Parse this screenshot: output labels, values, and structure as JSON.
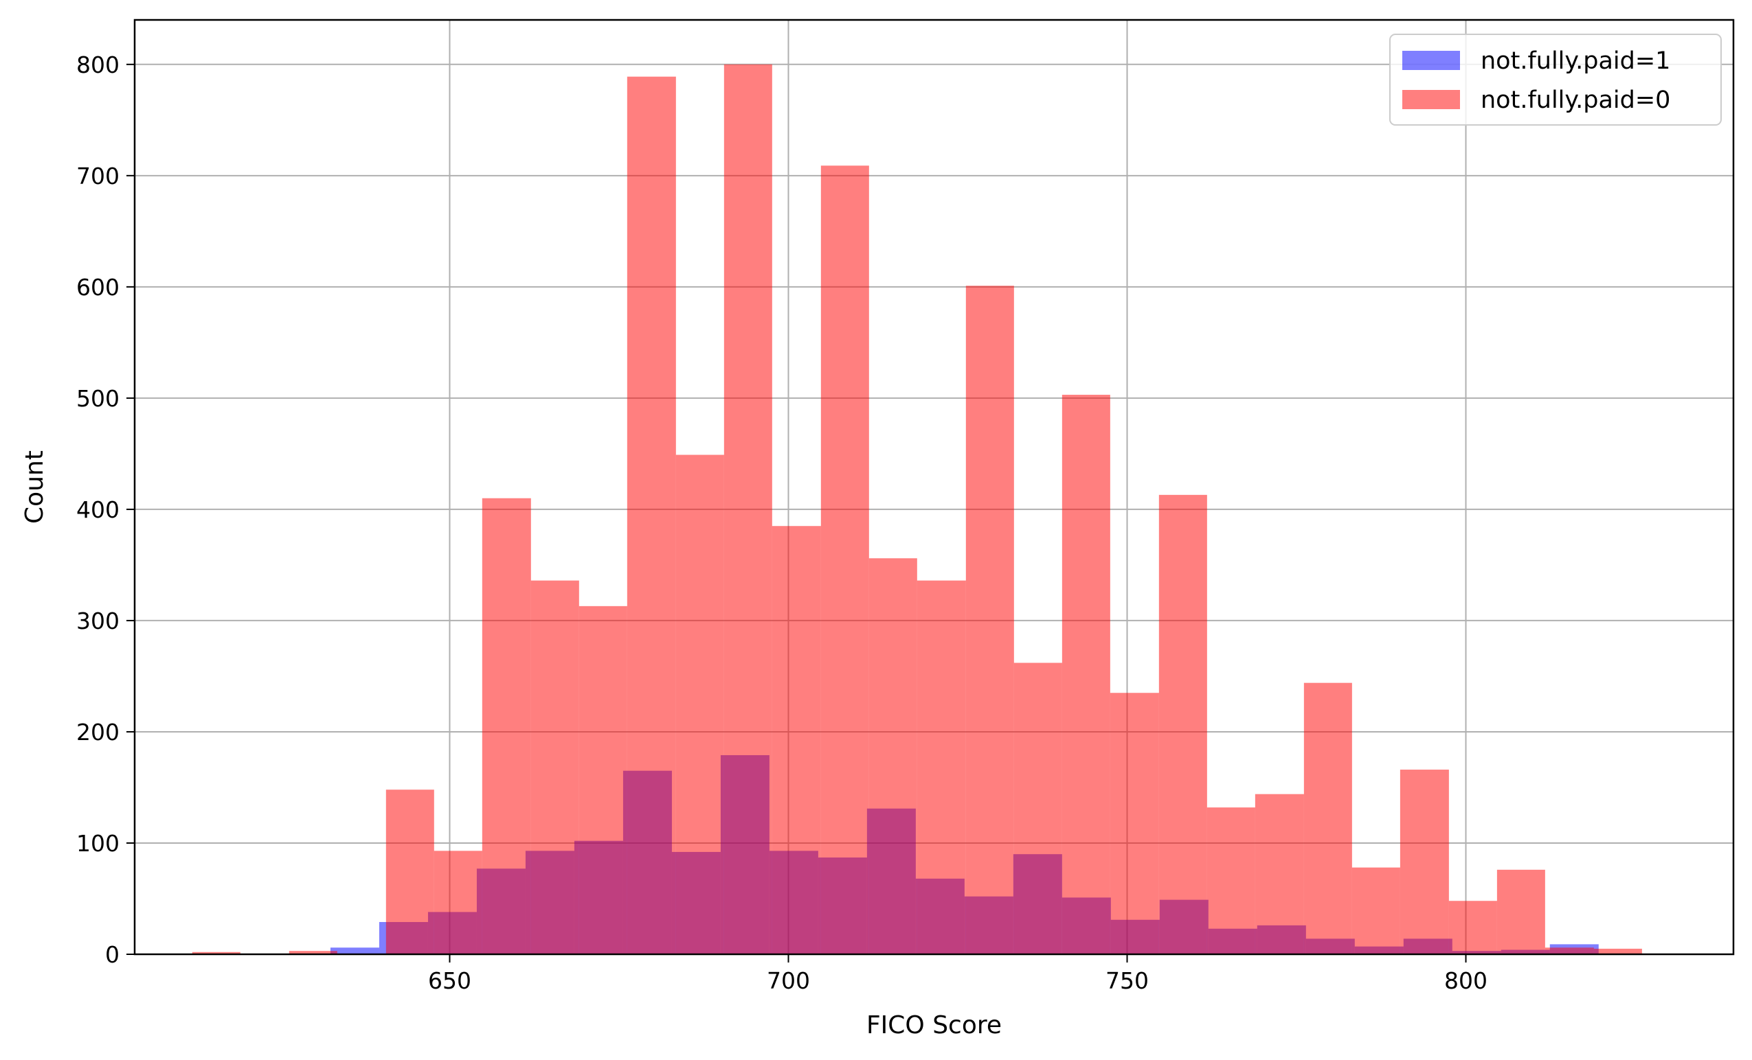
{
  "chart_data": {
    "type": "histogram",
    "title": "",
    "xlabel": "FICO Score",
    "ylabel": "Count",
    "xlim": [
      603.5,
      839.5
    ],
    "ylim": [
      0,
      840
    ],
    "xticks": [
      650,
      700,
      750,
      800
    ],
    "yticks": [
      0,
      100,
      200,
      300,
      400,
      500,
      600,
      700,
      800
    ],
    "grid": true,
    "legend_position": "top-right",
    "series": [
      {
        "name": "not.fully.paid=1",
        "color": "#0000ff",
        "alpha": 0.5,
        "bins": [
          {
            "x0": 632.4,
            "x1": 639.6,
            "count": 6
          },
          {
            "x0": 639.6,
            "x1": 646.8,
            "count": 29
          },
          {
            "x0": 646.8,
            "x1": 654.0,
            "count": 38
          },
          {
            "x0": 654.0,
            "x1": 661.2,
            "count": 77
          },
          {
            "x0": 661.2,
            "x1": 668.4,
            "count": 93
          },
          {
            "x0": 668.4,
            "x1": 675.6,
            "count": 102
          },
          {
            "x0": 675.6,
            "x1": 682.8,
            "count": 165
          },
          {
            "x0": 682.8,
            "x1": 690.0,
            "count": 92
          },
          {
            "x0": 690.0,
            "x1": 697.2,
            "count": 179
          },
          {
            "x0": 697.2,
            "x1": 704.4,
            "count": 93
          },
          {
            "x0": 704.4,
            "x1": 711.6,
            "count": 87
          },
          {
            "x0": 711.6,
            "x1": 718.8,
            "count": 131
          },
          {
            "x0": 718.8,
            "x1": 726.0,
            "count": 68
          },
          {
            "x0": 726.0,
            "x1": 733.2,
            "count": 52
          },
          {
            "x0": 733.2,
            "x1": 740.4,
            "count": 90
          },
          {
            "x0": 740.4,
            "x1": 747.6,
            "count": 51
          },
          {
            "x0": 747.6,
            "x1": 754.8,
            "count": 31
          },
          {
            "x0": 754.8,
            "x1": 762.0,
            "count": 49
          },
          {
            "x0": 762.0,
            "x1": 769.2,
            "count": 23
          },
          {
            "x0": 769.2,
            "x1": 776.4,
            "count": 26
          },
          {
            "x0": 776.4,
            "x1": 783.6,
            "count": 14
          },
          {
            "x0": 783.6,
            "x1": 790.8,
            "count": 7
          },
          {
            "x0": 790.8,
            "x1": 798.0,
            "count": 14
          },
          {
            "x0": 798.0,
            "x1": 805.2,
            "count": 3
          },
          {
            "x0": 805.2,
            "x1": 812.4,
            "count": 4
          },
          {
            "x0": 812.4,
            "x1": 819.6,
            "count": 9
          }
        ]
      },
      {
        "name": "not.fully.paid=0",
        "color": "#ff0000",
        "alpha": 0.5,
        "bins": [
          {
            "x0": 612.0,
            "x1": 619.1,
            "count": 2
          },
          {
            "x0": 626.3,
            "x1": 633.4,
            "count": 3
          },
          {
            "x0": 640.6,
            "x1": 647.7,
            "count": 148
          },
          {
            "x0": 647.7,
            "x1": 654.8,
            "count": 93
          },
          {
            "x0": 654.8,
            "x1": 662.0,
            "count": 410
          },
          {
            "x0": 662.0,
            "x1": 669.1,
            "count": 336
          },
          {
            "x0": 669.1,
            "x1": 676.2,
            "count": 313
          },
          {
            "x0": 676.2,
            "x1": 683.4,
            "count": 789
          },
          {
            "x0": 683.4,
            "x1": 690.5,
            "count": 449
          },
          {
            "x0": 690.5,
            "x1": 697.6,
            "count": 800
          },
          {
            "x0": 697.6,
            "x1": 704.8,
            "count": 385
          },
          {
            "x0": 704.8,
            "x1": 711.9,
            "count": 709
          },
          {
            "x0": 711.9,
            "x1": 719.0,
            "count": 356
          },
          {
            "x0": 719.0,
            "x1": 726.2,
            "count": 336
          },
          {
            "x0": 726.2,
            "x1": 733.3,
            "count": 601
          },
          {
            "x0": 733.3,
            "x1": 740.4,
            "count": 262
          },
          {
            "x0": 740.4,
            "x1": 747.5,
            "count": 503
          },
          {
            "x0": 747.5,
            "x1": 754.7,
            "count": 235
          },
          {
            "x0": 754.7,
            "x1": 761.8,
            "count": 413
          },
          {
            "x0": 761.8,
            "x1": 768.9,
            "count": 132
          },
          {
            "x0": 768.9,
            "x1": 776.1,
            "count": 144
          },
          {
            "x0": 776.1,
            "x1": 783.2,
            "count": 244
          },
          {
            "x0": 783.2,
            "x1": 790.3,
            "count": 78
          },
          {
            "x0": 790.3,
            "x1": 797.5,
            "count": 166
          },
          {
            "x0": 797.5,
            "x1": 804.6,
            "count": 48
          },
          {
            "x0": 804.6,
            "x1": 811.7,
            "count": 76
          },
          {
            "x0": 811.7,
            "x1": 818.9,
            "count": 6
          },
          {
            "x0": 818.9,
            "x1": 826.0,
            "count": 5
          }
        ]
      }
    ]
  }
}
